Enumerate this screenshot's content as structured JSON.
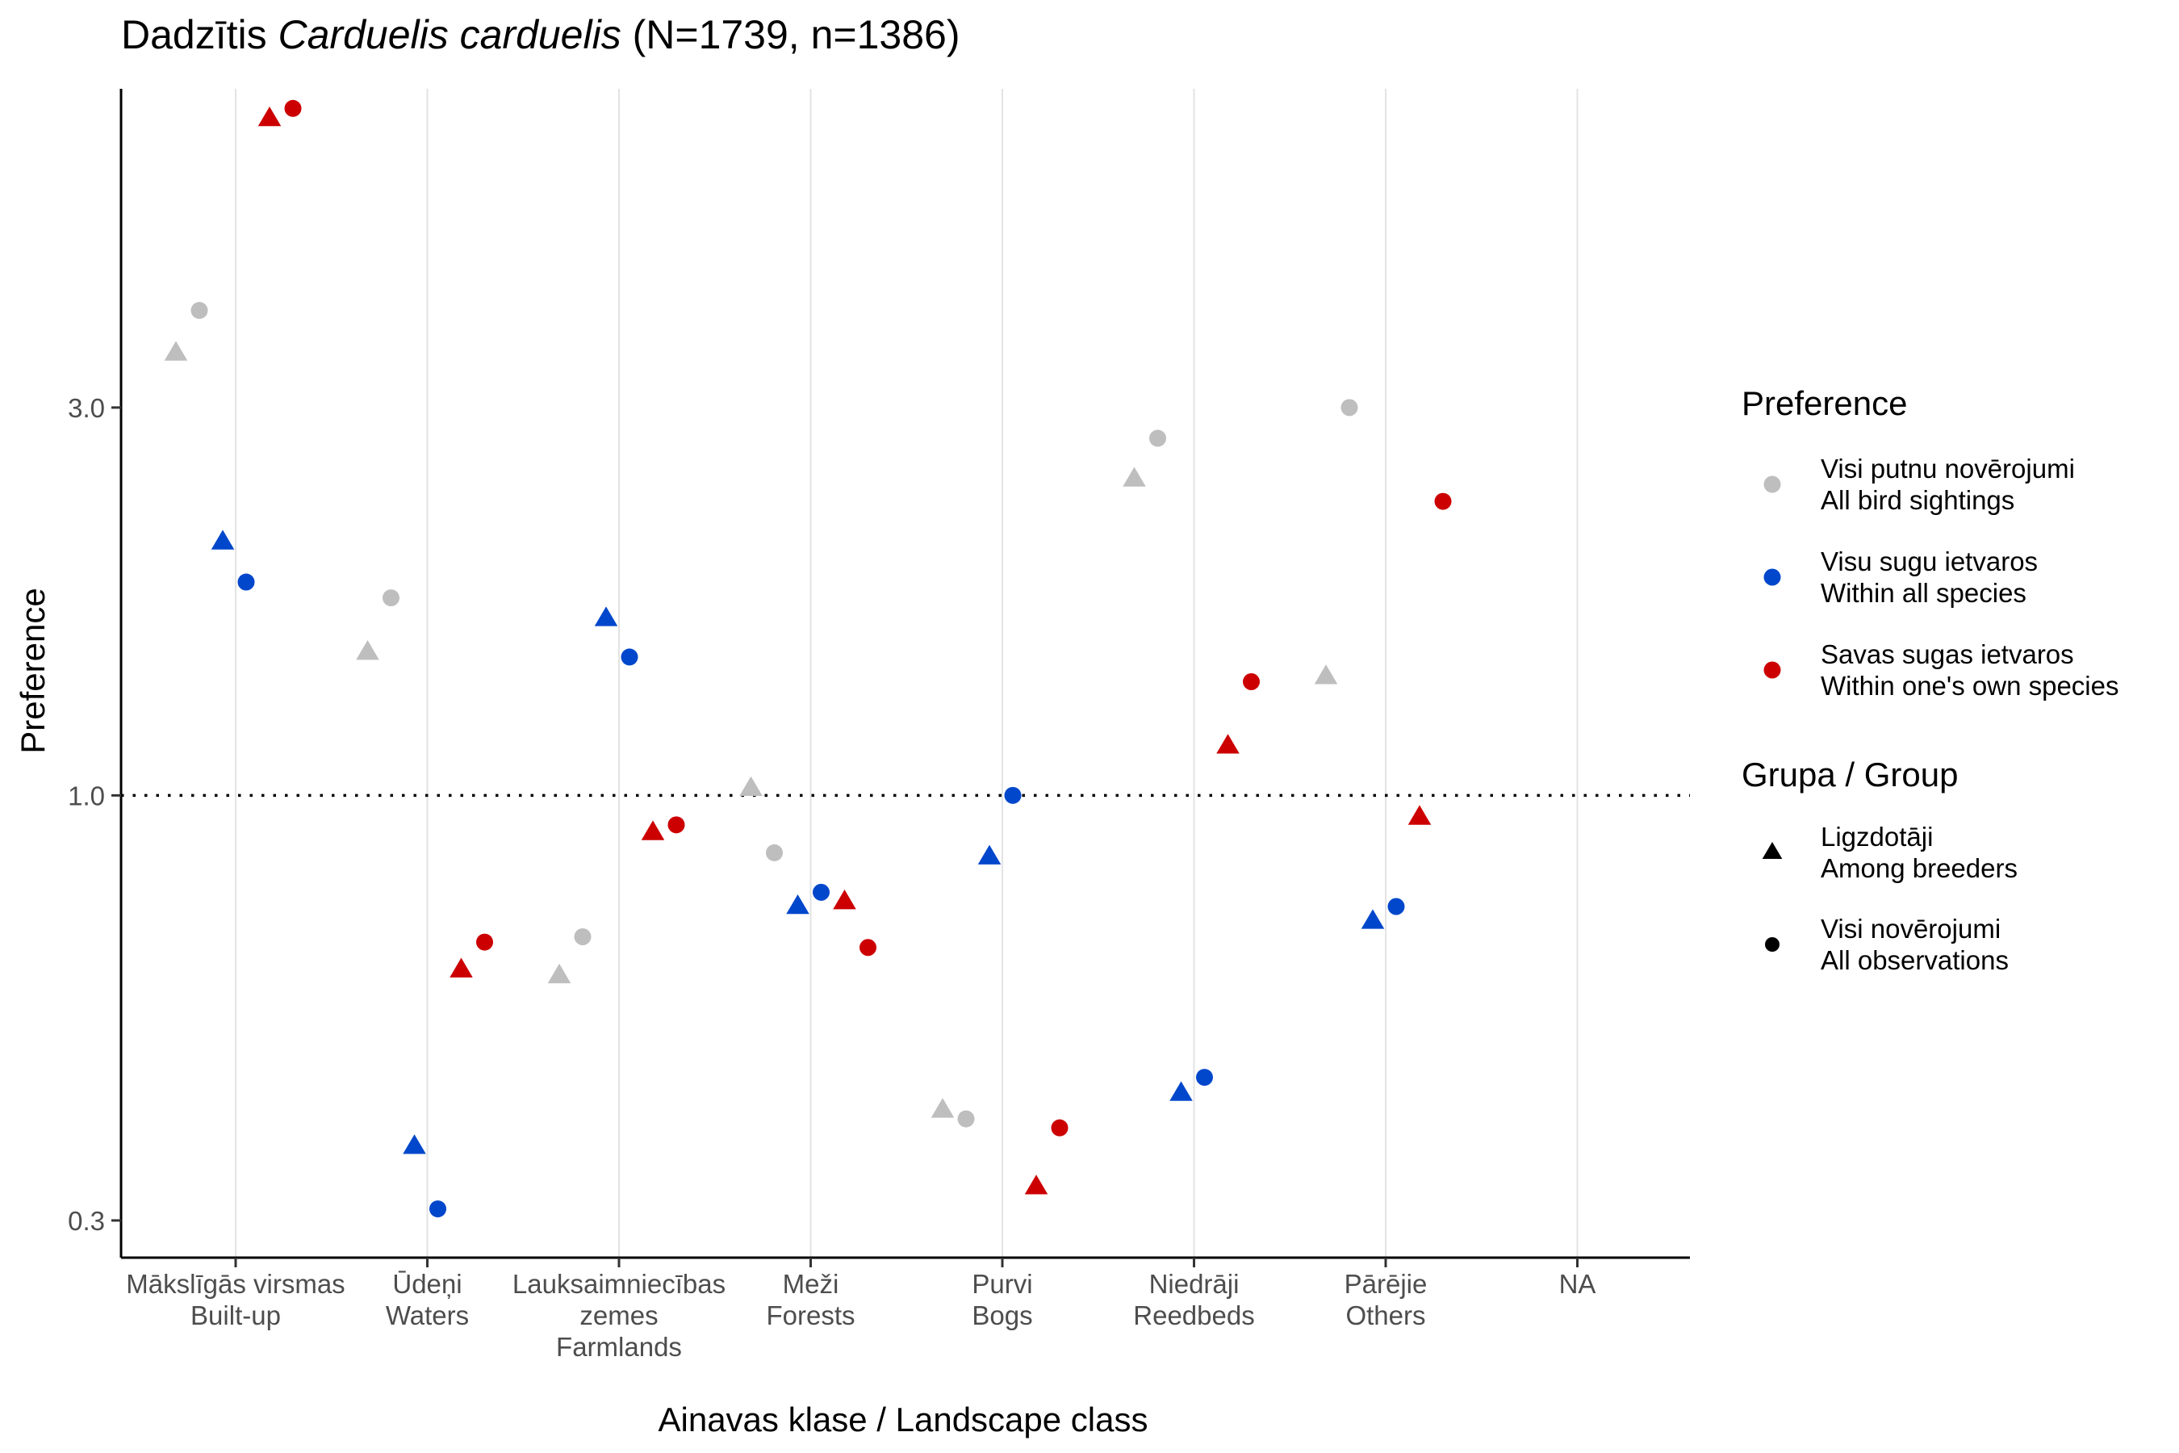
{
  "chart_data": {
    "type": "scatter",
    "title": {
      "prefix": "Dadzītis ",
      "italic": "Carduelis carduelis",
      "suffix": " (N=1739, n=1386)"
    },
    "xlabel": "Ainavas klase / Landscape class",
    "ylabel": "Preference",
    "y_scale": "log",
    "ylim": [
      0.27,
      7.4
    ],
    "y_ticks": [
      {
        "value": 0.3,
        "label": "0.3"
      },
      {
        "value": 1.0,
        "label": "1.0"
      },
      {
        "value": 3.0,
        "label": "3.0"
      }
    ],
    "reference_line": {
      "value": 1.0,
      "style": "dotted"
    },
    "grid": "vertical major only",
    "categories": [
      [
        "Mākslīgās virsmas",
        "Built-up"
      ],
      [
        "Ūdeņi",
        "Waters"
      ],
      [
        "Lauksaimniecības",
        "zemes",
        "Farmlands"
      ],
      [
        "Meži",
        "Forests"
      ],
      [
        "Purvi",
        "Bogs"
      ],
      [
        "Niedrāji",
        "Reedbeds"
      ],
      [
        "Pārējie",
        "Others"
      ],
      [
        "NA"
      ]
    ],
    "preference_legend": {
      "title": "Preference",
      "items": [
        {
          "lines": [
            "Visi putnu novērojumi",
            "All bird sightings"
          ],
          "color": "#bebebe"
        },
        {
          "lines": [
            "Visu sugu ietvaros",
            "Within all species"
          ],
          "color": "#0047cc"
        },
        {
          "lines": [
            "Savas sugas ietvaros",
            "Within one's own species"
          ],
          "color": "#cc0000"
        }
      ]
    },
    "group_legend": {
      "title": "Grupa / Group",
      "items": [
        {
          "lines": [
            "Ligzdotāji",
            "Among breeders"
          ],
          "shape": "triangle"
        },
        {
          "lines": [
            "Visi novērojumi",
            "All observations"
          ],
          "shape": "circle"
        }
      ]
    },
    "series": [
      {
        "preference": 0,
        "group": 0,
        "values": [
          3.5,
          1.5,
          0.6,
          1.02,
          0.41,
          2.45,
          1.4,
          null
        ]
      },
      {
        "preference": 0,
        "group": 1,
        "values": [
          3.95,
          1.75,
          0.67,
          0.85,
          0.4,
          2.75,
          3.0,
          null
        ]
      },
      {
        "preference": 1,
        "group": 0,
        "values": [
          2.05,
          0.37,
          1.65,
          0.73,
          0.84,
          0.43,
          0.7,
          null
        ]
      },
      {
        "preference": 1,
        "group": 1,
        "values": [
          1.83,
          0.31,
          1.48,
          0.76,
          1.0,
          0.45,
          0.73,
          null
        ]
      },
      {
        "preference": 2,
        "group": 0,
        "values": [
          6.8,
          0.61,
          0.9,
          0.74,
          0.33,
          1.15,
          0.94,
          null
        ]
      },
      {
        "preference": 2,
        "group": 1,
        "values": [
          7.0,
          0.66,
          0.92,
          0.65,
          0.39,
          1.38,
          2.3,
          null
        ]
      }
    ]
  }
}
